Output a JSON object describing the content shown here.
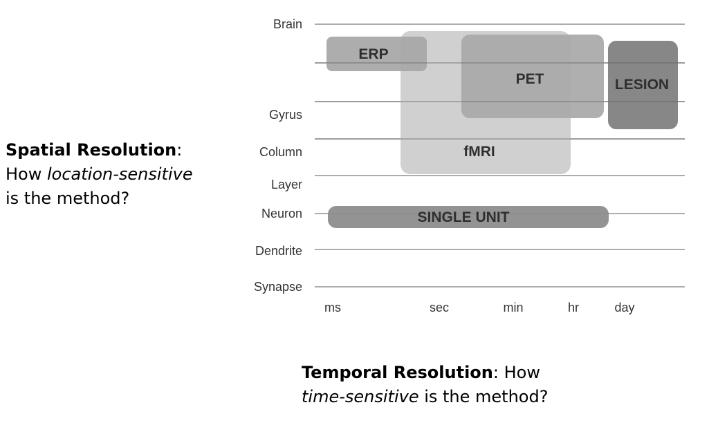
{
  "diagram": {
    "rows": [
      "Brain",
      "Gyrus",
      "Column",
      "Layer",
      "Neuron",
      "Dendrite",
      "Synapse"
    ],
    "columns": [
      "ms",
      "sec",
      "min",
      "hr",
      "day"
    ],
    "methods": [
      {
        "id": "fmri",
        "label": "fMRI",
        "color": "#c9c9c9"
      },
      {
        "id": "erp",
        "label": "ERP",
        "color": "#a6a6a6"
      },
      {
        "id": "pet",
        "label": "PET",
        "color": "#a8a8a8"
      },
      {
        "id": "lesion",
        "label": "LESION",
        "color": "#7f7f7f"
      },
      {
        "id": "single-unit",
        "label": "SINGLE UNIT",
        "color": "#8c8c8c"
      }
    ]
  },
  "spatial_caption": {
    "title": "Spatial Resolution",
    "colon": ":",
    "line2_prefix": "How ",
    "line2_italic": "location-sensitive",
    "line3": "is the method?"
  },
  "temporal_caption": {
    "title": "Temporal Resolution",
    "colon_suffix": ": How",
    "line2_italic": "time-sensitive",
    "line2_suffix": " is the method?"
  }
}
